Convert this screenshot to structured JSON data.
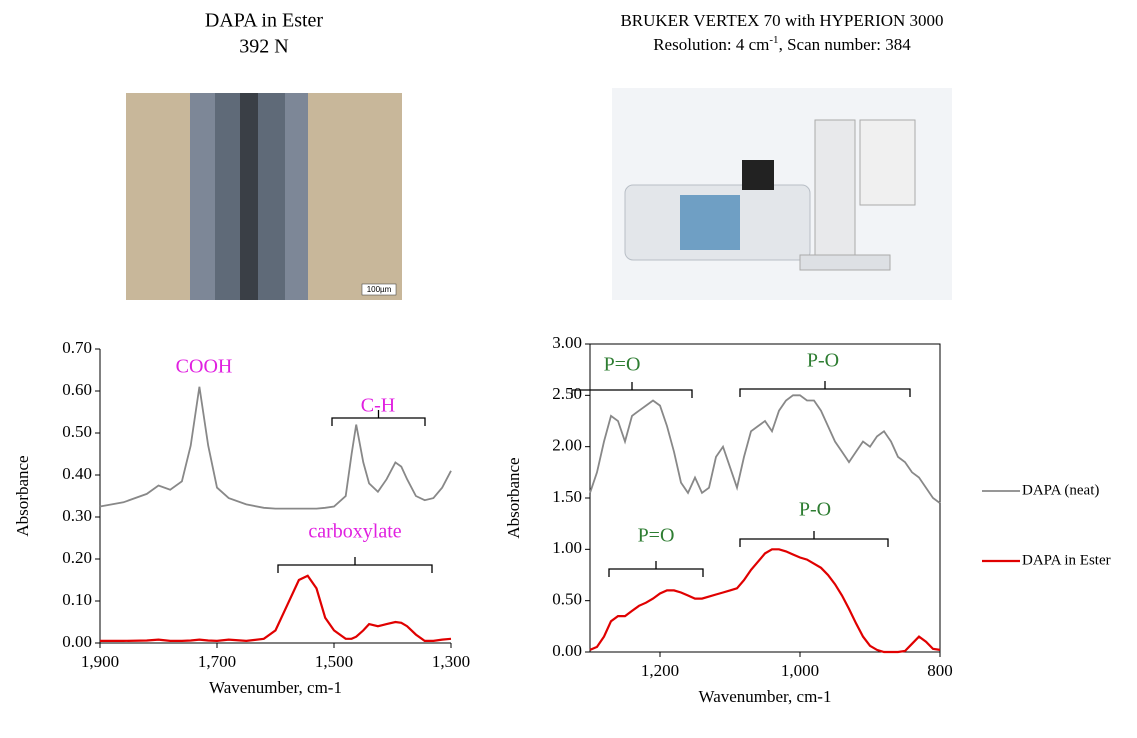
{
  "header": {
    "left_title": [
      "DAPA in Ester",
      "392 N"
    ],
    "right_title": [
      "BRUKER VERTEX 70 with HYPERION 3000",
      {
        "before": "Resolution: 4 cm",
        "sup": "-1",
        "after": ", Scan number: 384"
      }
    ],
    "scale_bar": "100µm"
  },
  "chart_data": [
    {
      "type": "line",
      "xlabel": "Wavenumber, cm-1",
      "ylabel": "Absorbance",
      "xlim": [
        1900,
        1300
      ],
      "ylim": [
        0,
        0.7
      ],
      "xticks": [
        {
          "value": 1900,
          "label": "1,900"
        },
        {
          "value": 1700,
          "label": "1,700"
        },
        {
          "value": 1500,
          "label": "1,500"
        },
        {
          "value": 1300,
          "label": "1,300"
        }
      ],
      "yticks": [
        {
          "value": 0,
          "label": "0.00"
        },
        {
          "value": 0.1,
          "label": "0.10"
        },
        {
          "value": 0.2,
          "label": "0.20"
        },
        {
          "value": 0.3,
          "label": "0.30"
        },
        {
          "value": 0.4,
          "label": "0.40"
        },
        {
          "value": 0.5,
          "label": "0.50"
        },
        {
          "value": 0.6,
          "label": "0.60"
        },
        {
          "value": 0.7,
          "label": "0.70"
        }
      ],
      "x": [
        1900,
        1860,
        1820,
        1800,
        1780,
        1760,
        1745,
        1730,
        1715,
        1700,
        1680,
        1650,
        1620,
        1600,
        1580,
        1560,
        1545,
        1530,
        1515,
        1500,
        1480,
        1470,
        1462,
        1450,
        1440,
        1425,
        1410,
        1395,
        1385,
        1375,
        1360,
        1345,
        1330,
        1315,
        1300
      ],
      "series": [
        {
          "name": "DAPA (neat)",
          "color": "#888888",
          "values": [
            0.325,
            0.335,
            0.355,
            0.375,
            0.365,
            0.385,
            0.47,
            0.61,
            0.47,
            0.37,
            0.345,
            0.33,
            0.322,
            0.32,
            0.32,
            0.32,
            0.32,
            0.32,
            0.322,
            0.325,
            0.35,
            0.45,
            0.52,
            0.43,
            0.38,
            0.36,
            0.39,
            0.43,
            0.42,
            0.39,
            0.35,
            0.34,
            0.345,
            0.37,
            0.41
          ]
        },
        {
          "name": "DAPA in Ester",
          "color": "#e00000",
          "values": [
            0.005,
            0.005,
            0.006,
            0.008,
            0.005,
            0.005,
            0.006,
            0.008,
            0.006,
            0.005,
            0.008,
            0.005,
            0.01,
            0.03,
            0.09,
            0.15,
            0.16,
            0.13,
            0.06,
            0.03,
            0.01,
            0.01,
            0.015,
            0.03,
            0.045,
            0.04,
            0.045,
            0.05,
            0.048,
            0.04,
            0.02,
            0.005,
            0.005,
            0.008,
            0.01
          ]
        }
      ],
      "annotations": [
        "COOH",
        "C-H",
        "carboxylate"
      ],
      "annotation_color": "#e020e0",
      "frame": "axes"
    },
    {
      "type": "line",
      "xlabel": "Wavenumber, cm-1",
      "ylabel": "Absorbance",
      "xlim": [
        1300,
        800
      ],
      "ylim": [
        0,
        3
      ],
      "xticks": [
        {
          "value": 1200,
          "label": "1,200"
        },
        {
          "value": 1000,
          "label": "1,000"
        },
        800
      ],
      "yticks": [
        {
          "value": 0,
          "label": "0.00"
        },
        {
          "value": 0.5,
          "label": "0.50"
        },
        {
          "value": 1,
          "label": "1.00"
        },
        {
          "value": 1.5,
          "label": "1.50"
        },
        {
          "value": 2,
          "label": "2.00"
        },
        {
          "value": 2.5,
          "label": "2.50"
        },
        {
          "value": 3,
          "label": "3.00"
        }
      ],
      "x": [
        1300,
        1290,
        1280,
        1270,
        1260,
        1250,
        1240,
        1230,
        1220,
        1210,
        1200,
        1190,
        1180,
        1170,
        1160,
        1150,
        1140,
        1130,
        1120,
        1110,
        1100,
        1090,
        1080,
        1070,
        1060,
        1050,
        1040,
        1030,
        1020,
        1010,
        1000,
        990,
        980,
        970,
        960,
        950,
        940,
        930,
        920,
        910,
        900,
        890,
        880,
        870,
        860,
        850,
        840,
        830,
        820,
        810,
        800
      ],
      "series": [
        {
          "name": "DAPA (neat)",
          "color": "#888888",
          "values": [
            1.55,
            1.75,
            2.05,
            2.3,
            2.25,
            2.05,
            2.3,
            2.35,
            2.4,
            2.45,
            2.4,
            2.2,
            1.95,
            1.65,
            1.55,
            1.7,
            1.55,
            1.6,
            1.9,
            2.0,
            1.8,
            1.6,
            1.9,
            2.15,
            2.2,
            2.25,
            2.15,
            2.35,
            2.45,
            2.5,
            2.5,
            2.45,
            2.45,
            2.35,
            2.2,
            2.05,
            1.95,
            1.85,
            1.95,
            2.05,
            2.0,
            2.1,
            2.15,
            2.05,
            1.9,
            1.85,
            1.75,
            1.7,
            1.6,
            1.5,
            1.45
          ]
        },
        {
          "name": "DAPA in Ester",
          "color": "#e00000",
          "values": [
            0.02,
            0.05,
            0.15,
            0.3,
            0.35,
            0.35,
            0.4,
            0.45,
            0.48,
            0.52,
            0.57,
            0.6,
            0.6,
            0.58,
            0.55,
            0.52,
            0.52,
            0.54,
            0.56,
            0.58,
            0.6,
            0.62,
            0.7,
            0.8,
            0.88,
            0.96,
            1.0,
            1.0,
            0.98,
            0.95,
            0.92,
            0.9,
            0.86,
            0.82,
            0.75,
            0.66,
            0.55,
            0.42,
            0.28,
            0.15,
            0.06,
            0.02,
            0,
            0,
            0,
            0.01,
            0.08,
            0.15,
            0.1,
            0.03,
            0.02
          ]
        }
      ],
      "annotations": [
        "P=O",
        "P-O",
        "P=O",
        "P-O"
      ],
      "annotation_color": "#2e7d32",
      "frame": "box",
      "legend": "right"
    }
  ]
}
